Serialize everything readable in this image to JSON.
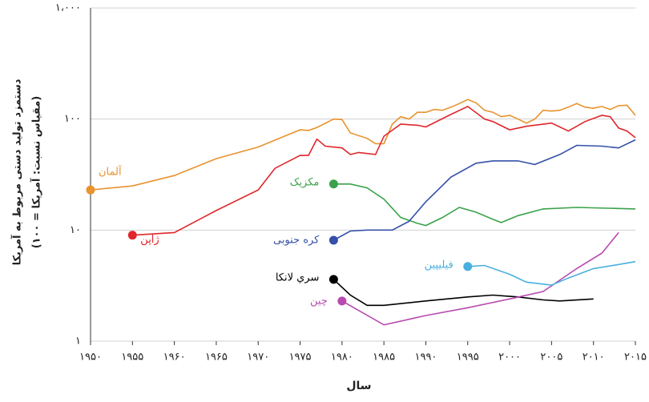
{
  "chart_data": {
    "type": "line",
    "y_label": [
      "دستمزد تولید دستی مربوط به آمریکا",
      "(مقیاس نسبت: آمریکا = ۱۰۰)"
    ],
    "x_label": "سال",
    "log_scale": true,
    "grid": true,
    "xlim": [
      1950,
      2015
    ],
    "ylim": [
      1,
      1000
    ],
    "xticks": [
      {
        "value": 1950,
        "label": "۱۹۵۰"
      },
      {
        "value": 1955,
        "label": "۱۹۵۵"
      },
      {
        "value": 1960,
        "label": "۱۹۶۰"
      },
      {
        "value": 1965,
        "label": "۱۹۶۵"
      },
      {
        "value": 1970,
        "label": "۱۹۷۰"
      },
      {
        "value": 1975,
        "label": "۱۹۷۵"
      },
      {
        "value": 1980,
        "label": "۱۹۸۰"
      },
      {
        "value": 1985,
        "label": "۱۹۸۵"
      },
      {
        "value": 1990,
        "label": "۱۹۹۰"
      },
      {
        "value": 1995,
        "label": "۱۹۹۵"
      },
      {
        "value": 2000,
        "label": "۲۰۰۰"
      },
      {
        "value": 2005,
        "label": "۲۰۰۵"
      },
      {
        "value": 2010,
        "label": "۲۰۱۰"
      },
      {
        "value": 2015,
        "label": "۲۰۱۵"
      }
    ],
    "yticks": [
      {
        "value": 1,
        "label": "۱"
      },
      {
        "value": 10,
        "label": "۱۰"
      },
      {
        "value": 100,
        "label": "۱۰۰"
      },
      {
        "value": 1000,
        "label": "۱،۰۰۰"
      }
    ],
    "series": [
      {
        "name": "آلمان",
        "color": "#e8932e",
        "x": [
          1950,
          1955,
          1960,
          1965,
          1970,
          1975,
          1976,
          1977,
          1979,
          1980,
          1981,
          1983,
          1984,
          1985,
          1986,
          1987,
          1988,
          1989,
          1990,
          1991,
          1992,
          1993,
          1994,
          1995,
          1996,
          1997,
          1998,
          1999,
          2000,
          2001,
          2002,
          2003,
          2004,
          2005,
          2006,
          2007,
          2008,
          2009,
          2010,
          2011,
          2012,
          2013,
          2014,
          2015
        ],
        "values": [
          23,
          25,
          31,
          44,
          56,
          80,
          79,
          84,
          100,
          99,
          75,
          67,
          60,
          60,
          90,
          105,
          100,
          115,
          115,
          122,
          120,
          128,
          138,
          150,
          140,
          120,
          115,
          105,
          108,
          100,
          92,
          100,
          120,
          118,
          120,
          128,
          138,
          128,
          125,
          130,
          122,
          132,
          133,
          108
        ]
      },
      {
        "name": "ژاپن",
        "color": "#e0262a",
        "x": [
          1955,
          1960,
          1965,
          1970,
          1972,
          1975,
          1976,
          1977,
          1978,
          1980,
          1981,
          1982,
          1984,
          1985,
          1987,
          1989,
          1990,
          1993,
          1995,
          1997,
          1998,
          2000,
          2002,
          2005,
          2007,
          2009,
          2011,
          2012,
          2013,
          2014,
          2015
        ],
        "values": [
          9,
          9.5,
          15,
          23,
          36,
          47,
          47,
          66,
          57,
          55,
          48,
          50,
          48,
          70,
          90,
          88,
          85,
          110,
          130,
          100,
          95,
          80,
          86,
          92,
          78,
          95,
          108,
          105,
          83,
          78,
          68
        ]
      },
      {
        "name": "مکزیک",
        "color": "#3aa24a",
        "x": [
          1979,
          1981,
          1983,
          1985,
          1987,
          1989,
          1990,
          1992,
          1994,
          1996,
          1998,
          1999,
          2001,
          2004,
          2008,
          2015
        ],
        "values": [
          26,
          26,
          24,
          19,
          13,
          11.5,
          11,
          13,
          16,
          14.5,
          12.5,
          11.7,
          13.5,
          15.5,
          16,
          15.5
        ]
      },
      {
        "name": "کره جنوبی",
        "color": "#3550a8",
        "x": [
          1979,
          1981,
          1983,
          1986,
          1988,
          1990,
          1993,
          1996,
          1998,
          2001,
          2003,
          2006,
          2008,
          2011,
          2013,
          2015
        ],
        "values": [
          8.1,
          9.8,
          10,
          10,
          12,
          18,
          30,
          40,
          42,
          42,
          39,
          48,
          58,
          57,
          55,
          65
        ]
      },
      {
        "name": "سري لانکا",
        "color": "#000000",
        "x": [
          1979,
          1981,
          1983,
          1985,
          1990,
          1995,
          1998,
          2001,
          2004,
          2006,
          2010
        ],
        "values": [
          3.6,
          2.6,
          2.1,
          2.1,
          2.3,
          2.5,
          2.6,
          2.5,
          2.35,
          2.3,
          2.4
        ]
      },
      {
        "name": "چین",
        "color": "#b84ab0",
        "x": [
          1980,
          1985,
          1990,
          1995,
          2000,
          2004,
          2008,
          2011,
          2013
        ],
        "values": [
          2.3,
          1.4,
          1.7,
          2.0,
          2.4,
          2.8,
          4.5,
          6.2,
          9.5
        ]
      },
      {
        "name": "فیلیپین",
        "color": "#4ab0e0",
        "x": [
          1995,
          1997,
          2000,
          2002,
          2005,
          2007,
          2010,
          2013,
          2015
        ],
        "values": [
          4.7,
          4.8,
          4.0,
          3.4,
          3.2,
          3.7,
          4.5,
          4.9,
          5.2
        ]
      }
    ]
  }
}
